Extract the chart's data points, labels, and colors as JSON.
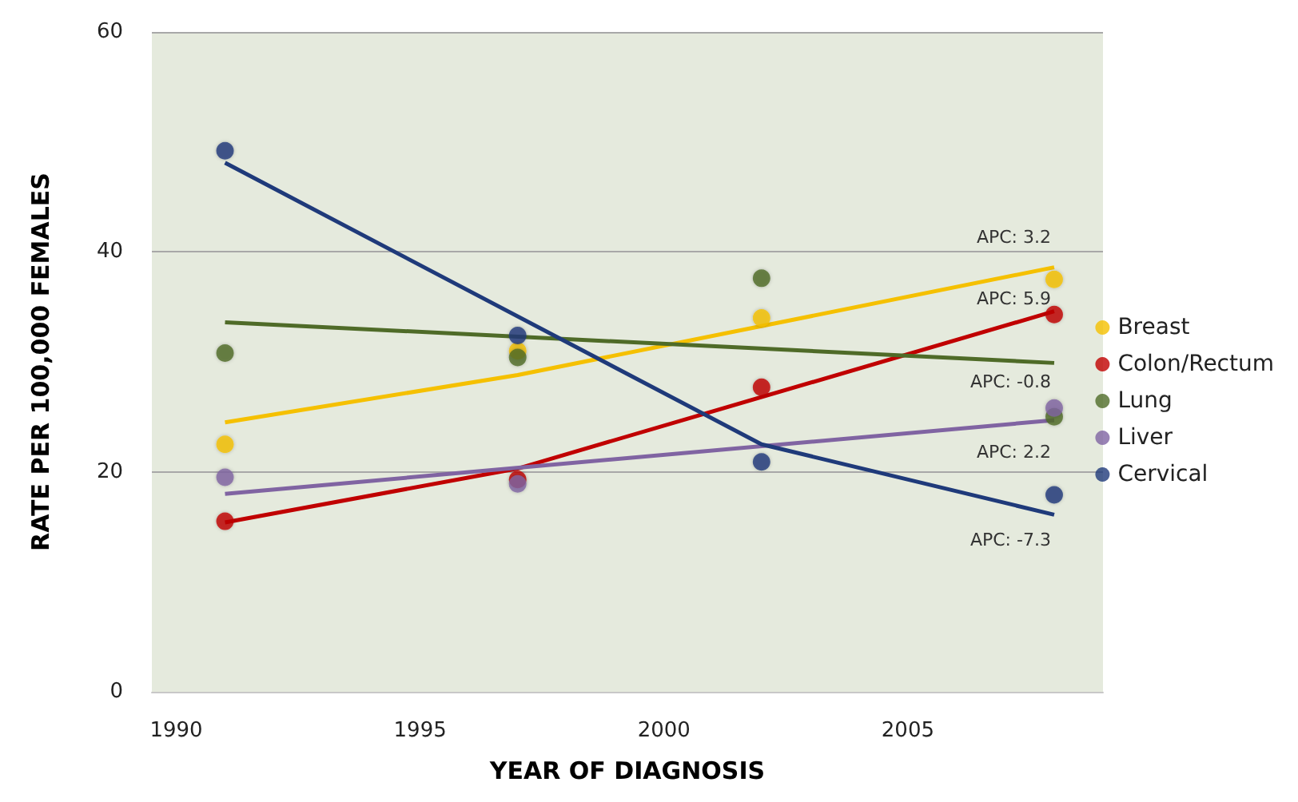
{
  "chart_data": {
    "type": "scatter",
    "xlabel": "YEAR OF DIAGNOSIS",
    "ylabel": "RATE PER 100,000 FEMALES",
    "xlim": [
      1989.5,
      2009
    ],
    "xticks": [
      1990,
      1995,
      2000,
      2005
    ],
    "ylim": [
      0,
      60
    ],
    "yticks": [
      0,
      20,
      40,
      60
    ],
    "grid": "y",
    "legend": "right",
    "marker": "circle",
    "series": [
      {
        "name": "Breast",
        "color": "#f5c000",
        "x": [
          1991,
          1997,
          2002,
          2008
        ],
        "values": [
          22.5,
          31.0,
          34.0,
          37.5
        ]
      },
      {
        "type": "line",
        "marker": "none",
        "color": "#f5c000",
        "x": [
          1991,
          1997,
          2008
        ],
        "values": [
          24.5,
          28.8,
          38.6
        ]
      },
      {
        "name": "Colon/Rectum",
        "color": "#c00000",
        "x": [
          1991,
          1997,
          2002,
          2008
        ],
        "values": [
          15.5,
          19.3,
          27.7,
          34.3
        ]
      },
      {
        "type": "line",
        "marker": "none",
        "color": "#c00000",
        "x": [
          1991,
          1997,
          2008
        ],
        "values": [
          15.4,
          20.3,
          34.6
        ]
      },
      {
        "name": "Lung",
        "color": "#4f6b28",
        "x": [
          1991,
          1997,
          2002,
          2008
        ],
        "values": [
          30.8,
          30.4,
          37.6,
          25.0
        ]
      },
      {
        "type": "line",
        "marker": "none",
        "color": "#4f6b28",
        "x": [
          1991,
          2008
        ],
        "values": [
          33.6,
          29.9
        ]
      },
      {
        "name": "Liver",
        "color": "#8064a2",
        "x": [
          1991,
          1997,
          2002,
          2008
        ],
        "values": [
          19.5,
          18.9,
          null,
          25.8
        ]
      },
      {
        "type": "line",
        "marker": "none",
        "color": "#8064a2",
        "x": [
          1991,
          2008
        ],
        "values": [
          18.0,
          24.7
        ]
      },
      {
        "name": "Cervical",
        "color": "#1f3a7a",
        "x": [
          1991,
          1997,
          2002,
          2008
        ],
        "values": [
          49.2,
          32.4,
          20.9,
          17.9
        ]
      },
      {
        "type": "line",
        "marker": "none",
        "color": "#1f3a7a",
        "x": [
          1991,
          2002,
          2008
        ],
        "values": [
          48.1,
          22.5,
          16.1
        ]
      }
    ],
    "annotations": [
      "APC: 3.2",
      "APC: 5.9",
      "APC: -0.8",
      "APC: 2.2",
      "APC: -7.3"
    ]
  }
}
